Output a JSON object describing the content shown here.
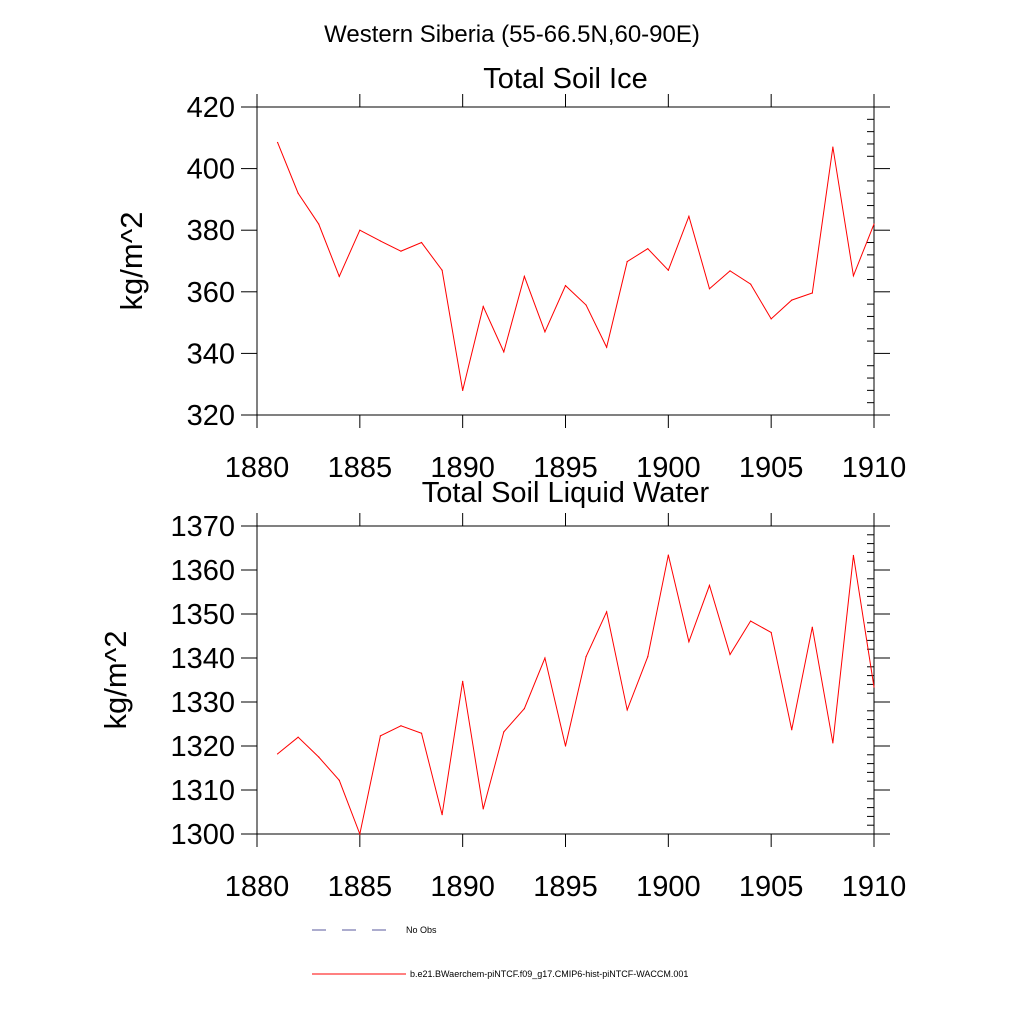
{
  "figure_title": "Western Siberia (55-66.5N,60-90E)",
  "colors": {
    "model_line": "#ff0000",
    "obs_line": "#5a5a9e",
    "axis": "#000000"
  },
  "legend": {
    "obs_label": "No Obs",
    "model_label": "b.e21.BWaerchem-piNTCF.f09_g17.CMIP6-hist-piNTCF-WACCM.001"
  },
  "chart_data": [
    {
      "type": "line",
      "title": "Total Soil Ice",
      "xlabel": "",
      "ylabel": "kg/m^2",
      "xlim": [
        1880,
        1910
      ],
      "ylim": [
        320,
        420
      ],
      "xticks": [
        "1880",
        "1885",
        "1890",
        "1895",
        "1900",
        "1905",
        "1910"
      ],
      "yticks": [
        "320",
        "340",
        "360",
        "380",
        "400",
        "420"
      ],
      "x": [
        1881,
        1882,
        1883,
        1884,
        1885,
        1886,
        1887,
        1888,
        1889,
        1890,
        1891,
        1892,
        1893,
        1894,
        1895,
        1896,
        1897,
        1898,
        1899,
        1900,
        1901,
        1902,
        1903,
        1904,
        1905,
        1906,
        1907,
        1908,
        1909,
        1910
      ],
      "series": [
        {
          "values": [
            408.5,
            392,
            382,
            365,
            380,
            376.5,
            373.2,
            376,
            367,
            328,
            355.2,
            340.5,
            365,
            347,
            362,
            355.7,
            342,
            369.8,
            374,
            367,
            384.5,
            361,
            366.8,
            362.5,
            351.2,
            357.3,
            359.6,
            407,
            365.2,
            382
          ]
        }
      ]
    },
    {
      "type": "line",
      "title": "Total Soil Liquid Water",
      "xlabel": "",
      "ylabel": "kg/m^2",
      "xlim": [
        1880,
        1910
      ],
      "ylim": [
        1300,
        1370
      ],
      "xticks": [
        "1880",
        "1885",
        "1890",
        "1895",
        "1900",
        "1905",
        "1910"
      ],
      "yticks": [
        "1300",
        "1310",
        "1320",
        "1330",
        "1340",
        "1350",
        "1360",
        "1370"
      ],
      "x": [
        1881,
        1882,
        1883,
        1884,
        1885,
        1886,
        1887,
        1888,
        1889,
        1890,
        1891,
        1892,
        1893,
        1894,
        1895,
        1896,
        1897,
        1898,
        1899,
        1900,
        1901,
        1902,
        1903,
        1904,
        1905,
        1906,
        1907,
        1908,
        1909,
        1910
      ],
      "series": [
        {
          "values": [
            1318.2,
            1322,
            1317.5,
            1312.2,
            1300,
            1322.3,
            1324.6,
            1322.9,
            1304.4,
            1334.7,
            1305.7,
            1323.2,
            1328.5,
            1340,
            1320,
            1340.3,
            1350.5,
            1328.2,
            1340.3,
            1363.4,
            1343.7,
            1356.5,
            1340.8,
            1348.4,
            1345.8,
            1323.7,
            1347,
            1320.7,
            1363.3,
            1333.4
          ]
        }
      ]
    }
  ]
}
